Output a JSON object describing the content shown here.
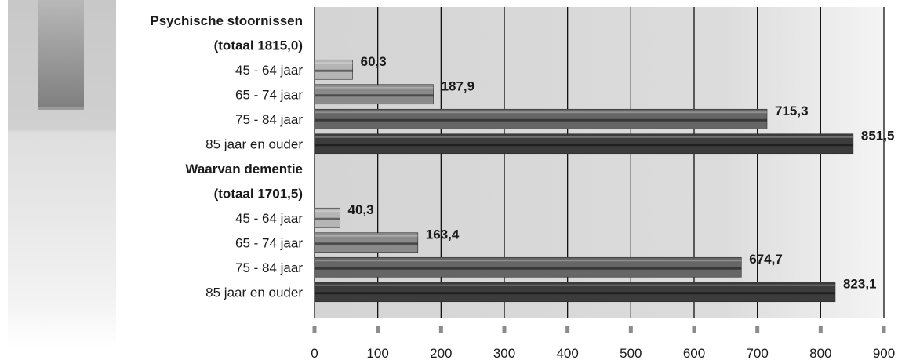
{
  "chart_data": {
    "type": "bar",
    "orientation": "horizontal",
    "categories": [
      "Psychische stoornissen",
      "(totaal 1815,0)",
      "45 - 64 jaar",
      "65 - 74 jaar",
      "75 - 84 jaar",
      "85 jaar en ouder",
      "Waarvan dementie",
      "(totaal 1701,5)",
      "45 - 64 jaar",
      "65 - 74 jaar",
      "75 - 84 jaar",
      "85 jaar en ouder"
    ],
    "group_header_rows": [
      0,
      1,
      6,
      7
    ],
    "values": [
      null,
      null,
      60.3,
      187.9,
      715.3,
      851.5,
      null,
      null,
      40.3,
      163.4,
      674.7,
      823.1
    ],
    "value_labels": [
      "",
      "",
      "60,3",
      "187,9",
      "715,3",
      "851,5",
      "",
      "",
      "40,3",
      "163,4",
      "674,7",
      "823,1"
    ],
    "bar_colors": [
      "",
      "",
      "#b5b5b5",
      "#8a8a8a",
      "#666666",
      "#3c3c3c",
      "",
      "",
      "#b5b5b5",
      "#8a8a8a",
      "#666666",
      "#3c3c3c"
    ],
    "xlim": [
      0,
      900
    ],
    "xticks": [
      0,
      100,
      200,
      300,
      400,
      500,
      600,
      700,
      800,
      900
    ],
    "grid": "vertical",
    "title": "",
    "xlabel": "",
    "ylabel": ""
  }
}
